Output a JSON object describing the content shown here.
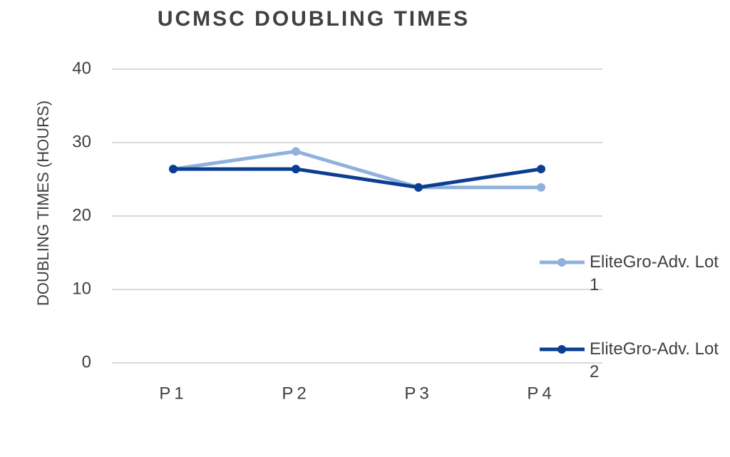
{
  "chart_data": {
    "type": "line",
    "title": "UCMSC DOUBLING TIMES",
    "y_label": "DOUBLING TIMES (HOURS)",
    "categories": [
      "P1",
      "P2",
      "P3",
      "P4"
    ],
    "series": [
      {
        "name": "EliteGro-Adv. Lot 1",
        "color": "#8fb1dc",
        "values": [
          26.4,
          28.8,
          23.9,
          23.9
        ]
      },
      {
        "name": "EliteGro-Adv. Lot 2",
        "color": "#0b3e92",
        "values": [
          26.4,
          26.4,
          23.9,
          26.4
        ]
      }
    ],
    "ylim": [
      0,
      40
    ],
    "yticks": [
      0,
      10,
      20,
      30,
      40
    ],
    "grid": true,
    "legend": "right"
  }
}
